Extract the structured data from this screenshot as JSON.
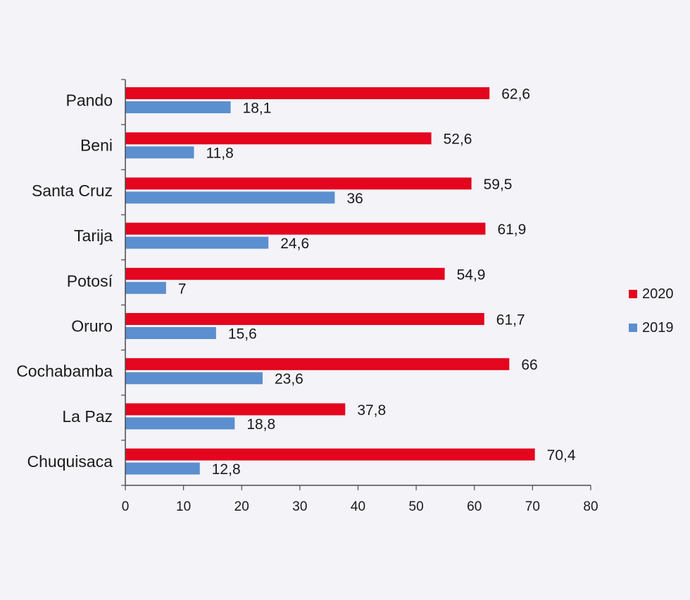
{
  "chart_data": {
    "type": "bar",
    "orientation": "horizontal",
    "title": "",
    "xlabel": "",
    "ylabel": "",
    "categories": [
      "Pando",
      "Beni",
      "Santa Cruz",
      "Tarija",
      "Potosí",
      "Oruro",
      "Cochabamba",
      "La Paz",
      "Chuquisaca"
    ],
    "series": [
      {
        "name": "2020",
        "color": "#e3061e",
        "values": [
          62.6,
          52.6,
          59.5,
          61.9,
          54.9,
          61.7,
          66,
          37.8,
          70.4
        ],
        "labels": [
          "62,6",
          "52,6",
          "59,5",
          "61,9",
          "54,9",
          "61,7",
          "66",
          "37,8",
          "70,4"
        ]
      },
      {
        "name": "2019",
        "color": "#5b8fcf",
        "values": [
          18.1,
          11.8,
          36,
          24.6,
          7,
          15.6,
          23.6,
          18.8,
          12.8
        ],
        "labels": [
          "18,1",
          "11,8",
          "36",
          "24,6",
          "7",
          "15,6",
          "23,6",
          "18,8",
          "12,8"
        ]
      }
    ],
    "xlim": [
      0,
      80
    ],
    "xticks": [
      0,
      10,
      20,
      30,
      40,
      50,
      60,
      70,
      80
    ],
    "grid": false,
    "legend_position": "right"
  }
}
